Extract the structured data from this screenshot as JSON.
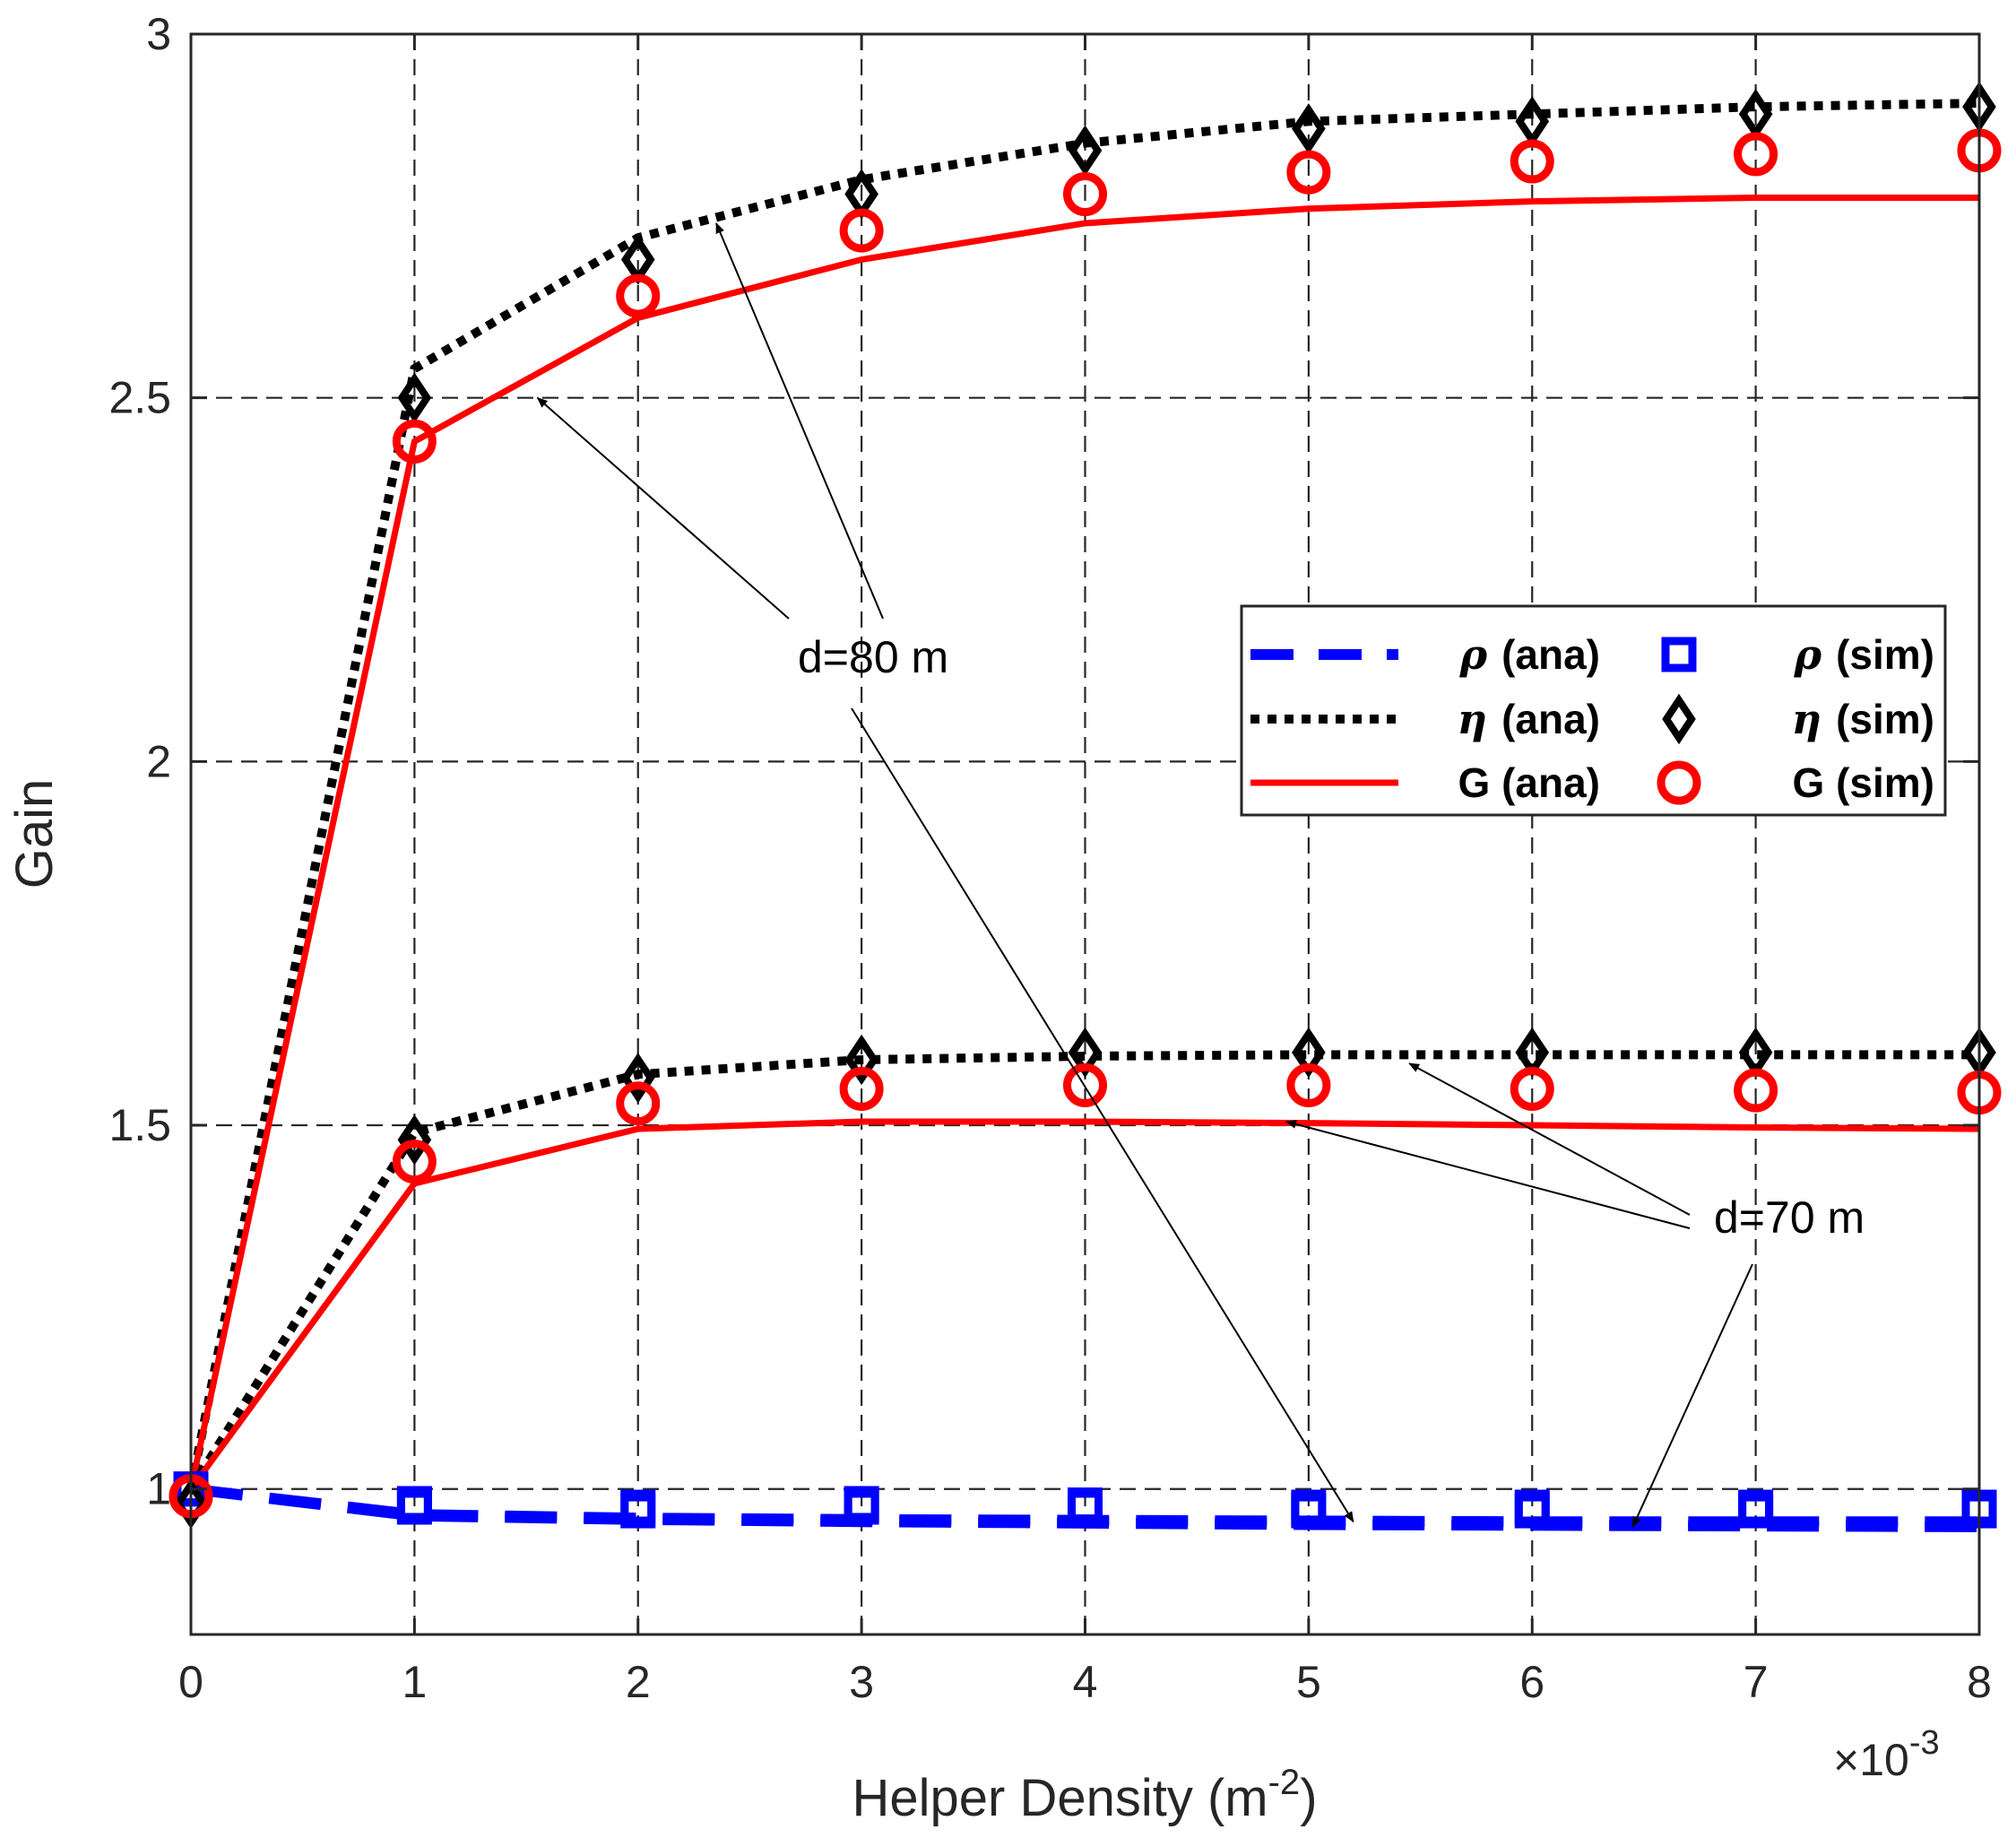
{
  "chart_data": {
    "type": "line",
    "title": "",
    "xlabel": "Helper Density (m",
    "xlabel_sup": "-2",
    "xlabel_close": ")",
    "x_multiplier": "×10",
    "x_multiplier_exp": "-3",
    "ylabel": "Gain",
    "xlim": [
      0,
      8
    ],
    "ylim": [
      0.8,
      3
    ],
    "x": [
      0,
      1,
      2,
      3,
      4,
      5,
      6,
      7,
      8
    ],
    "xticks": [
      "0",
      "1",
      "2",
      "3",
      "4",
      "5",
      "6",
      "7",
      "8"
    ],
    "yticks": [
      {
        "value": 1,
        "label": "1"
      },
      {
        "value": 1.5,
        "label": "1.5"
      },
      {
        "value": 2,
        "label": "2"
      },
      {
        "value": 2.5,
        "label": "2.5"
      },
      {
        "value": 3,
        "label": "3"
      }
    ],
    "grid": true,
    "legend_position": "center-right",
    "series": [
      {
        "name": "rho_ana_80",
        "group": "d=80 m",
        "legend": "rho-ana",
        "style": "dashed",
        "color": "#0000ff",
        "values": [
          1.0,
          0.965,
          0.96,
          0.958,
          0.957,
          0.956,
          0.955,
          0.955,
          0.955
        ]
      },
      {
        "name": "rho_ana_70",
        "group": "d=70 m",
        "legend": "rho-ana",
        "style": "dashed",
        "color": "#0000ff",
        "values": [
          1.0,
          0.963,
          0.958,
          0.955,
          0.953,
          0.951,
          0.95,
          0.949,
          0.948
        ]
      },
      {
        "name": "rho_sim_80",
        "group": "d=80 m",
        "legend": "rho-sim",
        "style": "marker-square",
        "color": "#0000ff",
        "values": [
          1.0,
          0.98,
          0.975,
          0.98,
          0.978,
          0.975,
          0.975,
          0.975,
          0.975
        ]
      },
      {
        "name": "rho_sim_70",
        "group": "d=70 m",
        "legend": "rho-sim",
        "style": "marker-square",
        "color": "#0000ff",
        "values": [
          1.0,
          0.975,
          0.97,
          0.975,
          0.975,
          0.97,
          0.97,
          0.97,
          0.97
        ]
      },
      {
        "name": "eta_ana_80",
        "group": "d=80 m",
        "legend": "eta-ana",
        "style": "dotted",
        "color": "#000000",
        "values": [
          1.0,
          2.54,
          2.72,
          2.8,
          2.85,
          2.88,
          2.89,
          2.9,
          2.905
        ]
      },
      {
        "name": "eta_sim_80",
        "group": "d=80 m",
        "legend": "eta-sim",
        "style": "marker-diamond",
        "color": "#000000",
        "values": [
          0.98,
          2.5,
          2.69,
          2.78,
          2.84,
          2.87,
          2.88,
          2.89,
          2.9
        ]
      },
      {
        "name": "G_ana_80",
        "group": "d=80 m",
        "legend": "G-ana",
        "style": "solid",
        "color": "#ff0000",
        "values": [
          1.0,
          2.44,
          2.61,
          2.69,
          2.74,
          2.76,
          2.77,
          2.775,
          2.775
        ]
      },
      {
        "name": "G_sim_80",
        "group": "d=80 m",
        "legend": "G-sim",
        "style": "marker-circle",
        "color": "#ff0000",
        "values": [
          0.99,
          2.44,
          2.64,
          2.73,
          2.78,
          2.81,
          2.825,
          2.835,
          2.84
        ]
      },
      {
        "name": "eta_ana_70",
        "group": "d=70 m",
        "legend": "eta-ana",
        "style": "dotted",
        "color": "#000000",
        "values": [
          1.0,
          1.49,
          1.57,
          1.59,
          1.595,
          1.597,
          1.597,
          1.597,
          1.597
        ]
      },
      {
        "name": "eta_sim_70",
        "group": "d=70 m",
        "legend": "eta-sim",
        "style": "marker-diamond",
        "color": "#000000",
        "values": [
          0.98,
          1.48,
          1.565,
          1.59,
          1.6,
          1.6,
          1.6,
          1.6,
          1.6
        ]
      },
      {
        "name": "G_ana_70",
        "group": "d=70 m",
        "legend": "G-ana",
        "style": "solid",
        "color": "#ff0000",
        "values": [
          1.0,
          1.42,
          1.495,
          1.505,
          1.505,
          1.503,
          1.5,
          1.497,
          1.495
        ]
      },
      {
        "name": "G_sim_70",
        "group": "d=70 m",
        "legend": "G-sim",
        "style": "marker-circle",
        "color": "#ff0000",
        "values": [
          0.99,
          1.45,
          1.53,
          1.55,
          1.555,
          1.555,
          1.55,
          1.548,
          1.545
        ]
      }
    ],
    "legend": {
      "entries": [
        {
          "key": "rho-ana",
          "symbol": "ρ",
          "label": "(ana)",
          "style": "dashed",
          "color": "#0000ff"
        },
        {
          "key": "rho-sim",
          "symbol": "ρ",
          "label": "(sim)",
          "style": "marker-square",
          "color": "#0000ff"
        },
        {
          "key": "eta-ana",
          "symbol": "η",
          "label": "(ana)",
          "style": "dotted",
          "color": "#000000"
        },
        {
          "key": "eta-sim",
          "symbol": "η",
          "label": "(sim)",
          "style": "marker-diamond",
          "color": "#000000"
        },
        {
          "key": "G-ana",
          "symbol": "",
          "label": "G (ana)",
          "style": "solid",
          "color": "#ff0000"
        },
        {
          "key": "G-sim",
          "symbol": "",
          "label": "G (sim)",
          "style": "marker-circle",
          "color": "#ff0000"
        }
      ]
    },
    "annotations": [
      {
        "text": "d=80 m",
        "arrows_to": [
          {
            "x": 1.55,
            "y": 2.5
          },
          {
            "x": 2.35,
            "y": 2.74
          },
          {
            "x": 5.2,
            "y": 0.955
          }
        ]
      },
      {
        "text": "d=70 m",
        "arrows_to": [
          {
            "x": 5.45,
            "y": 1.585
          },
          {
            "x": 4.9,
            "y": 1.505
          },
          {
            "x": 6.45,
            "y": 0.948
          }
        ]
      }
    ]
  }
}
